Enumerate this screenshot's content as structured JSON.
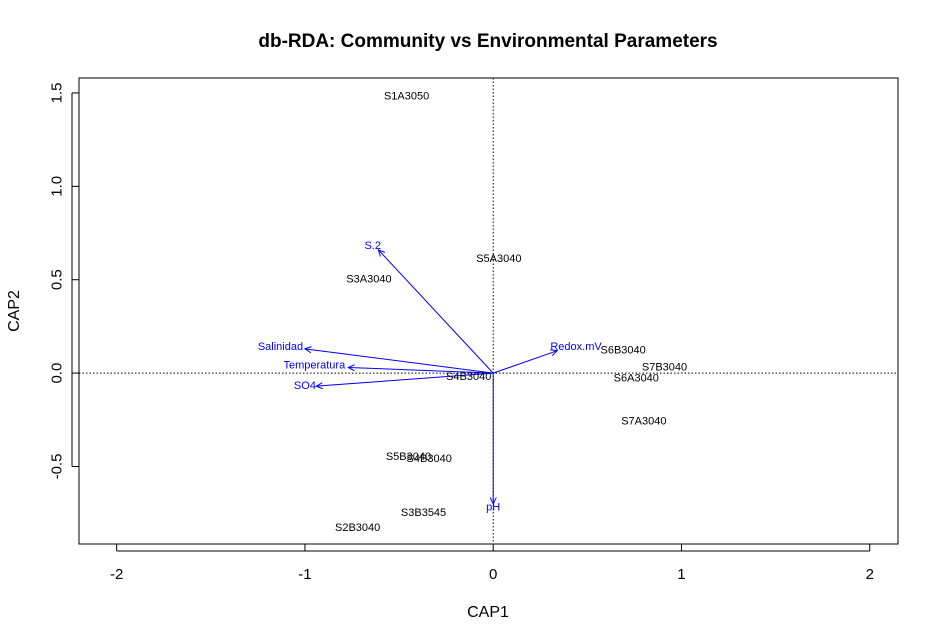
{
  "chart_data": {
    "type": "scatter",
    "title": "db-RDA: Community vs Environmental Parameters",
    "xlabel": "CAP1",
    "ylabel": "CAP2",
    "xlim": [
      -2.2,
      2.15
    ],
    "ylim": [
      -0.915,
      1.58
    ],
    "xticks": [
      -2,
      -1,
      0,
      1,
      2
    ],
    "yticks": [
      -0.5,
      0.0,
      0.5,
      1.0,
      1.5
    ],
    "xtick_labels": [
      "-2",
      "-1",
      "0",
      "1",
      "2"
    ],
    "ytick_labels": [
      "-0.5",
      "0.0",
      "0.5",
      "1.0",
      "1.5"
    ],
    "reference_lines": [
      {
        "axis": "x",
        "value": 0
      },
      {
        "axis": "y",
        "value": 0
      }
    ],
    "grid": false,
    "sites": [
      {
        "label": "S1A3050",
        "x": -0.46,
        "y": 1.48
      },
      {
        "label": "S5A3040",
        "x": 0.03,
        "y": 0.61
      },
      {
        "label": "S3A3040",
        "x": -0.66,
        "y": 0.5
      },
      {
        "label": "S6B3040",
        "x": 0.69,
        "y": 0.12
      },
      {
        "label": "S7B3040",
        "x": 0.91,
        "y": 0.03
      },
      {
        "label": "S6A3040",
        "x": 0.76,
        "y": -0.03
      },
      {
        "label": "S4B3040",
        "x": -0.13,
        "y": -0.02
      },
      {
        "label": "S7A3040",
        "x": 0.8,
        "y": -0.26
      },
      {
        "label": "S5B3040",
        "x": -0.45,
        "y": -0.45
      },
      {
        "label": "S4B3040",
        "x": -0.34,
        "y": -0.46
      },
      {
        "label": "S3B3545",
        "x": -0.37,
        "y": -0.75
      },
      {
        "label": "S2B3040",
        "x": -0.72,
        "y": -0.83
      }
    ],
    "env_vectors": [
      {
        "label": "S.2",
        "x": -0.61,
        "y": 0.66,
        "label_x": -0.64,
        "label_y": 0.68
      },
      {
        "label": "Salinidad",
        "x": -1.0,
        "y": 0.13,
        "label_x": -1.13,
        "label_y": 0.14
      },
      {
        "label": "Temperatura",
        "x": -0.77,
        "y": 0.03,
        "label_x": -0.95,
        "label_y": 0.04
      },
      {
        "label": "SO4",
        "x": -0.94,
        "y": -0.07,
        "label_x": -1.0,
        "label_y": -0.07
      },
      {
        "label": "Redox.mV",
        "x": 0.34,
        "y": 0.12,
        "label_x": 0.44,
        "label_y": 0.14
      },
      {
        "label": "pH",
        "x": 0.0,
        "y": -0.7,
        "label_x": 0.0,
        "label_y": -0.72
      }
    ],
    "colors": {
      "sites": "#000000",
      "env": "#0000ff",
      "refline": "#000000"
    }
  }
}
